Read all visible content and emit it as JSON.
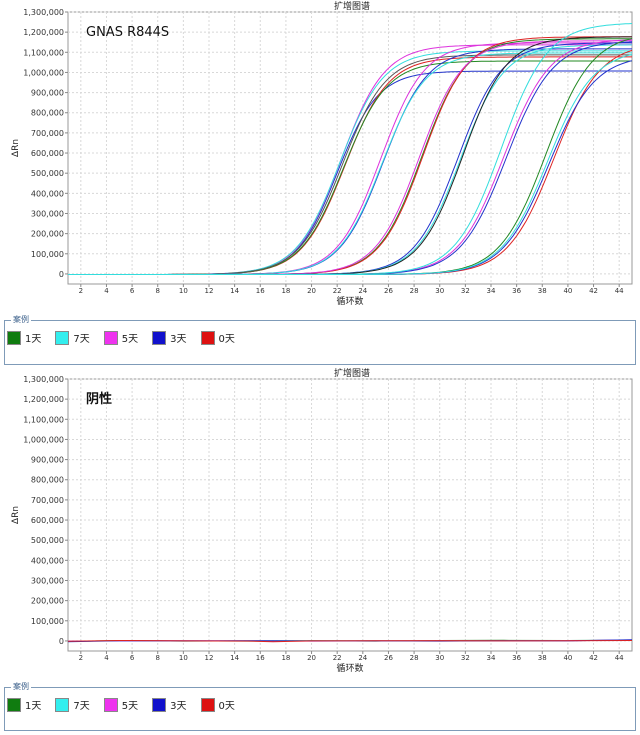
{
  "chart_data": [
    {
      "type": "line",
      "title": "扩增图谱",
      "annotation": "GNAS R844S",
      "xlabel": "循环数",
      "ylabel": "ΔRn",
      "xlim": [
        1,
        45
      ],
      "ylim": [
        -50000,
        1300000
      ],
      "x_ticks": [
        2,
        4,
        6,
        8,
        10,
        12,
        14,
        16,
        18,
        20,
        22,
        24,
        26,
        28,
        30,
        32,
        34,
        36,
        38,
        40,
        42,
        44
      ],
      "y_ticks": [
        0,
        100000,
        200000,
        300000,
        400000,
        500000,
        600000,
        700000,
        800000,
        900000,
        1000000,
        1100000,
        1200000,
        1300000
      ],
      "y_tick_labels": [
        "0",
        "100,000",
        "200,000",
        "300,000",
        "400,000",
        "500,000",
        "600,000",
        "700,000",
        "800,000",
        "900,000",
        "1,000,000",
        "1,100,000",
        "1,200,000",
        "1,300,000"
      ],
      "grid": true,
      "curve_model": "sigmoid: y = plateau / (1 + exp(-(x - midpoint) / slope))",
      "series": [
        {
          "name": "3天",
          "color": "#2233cc",
          "plateau": 1010000,
          "midpoint": 22.0,
          "slope": 1.6
        },
        {
          "name": "5天",
          "color": "#dd33dd",
          "plateau": 1140000,
          "midpoint": 22.3,
          "slope": 1.7
        },
        {
          "name": "7天",
          "color": "#33dddd",
          "plateau": 1110000,
          "midpoint": 22.2,
          "slope": 1.7
        },
        {
          "name": "0天",
          "color": "#dd2222",
          "plateau": 1080000,
          "midpoint": 22.6,
          "slope": 1.7
        },
        {
          "name": "1天",
          "color": "#228822",
          "plateau": 1060000,
          "midpoint": 22.5,
          "slope": 1.7
        },
        {
          "name": "3天",
          "color": "#555555",
          "plateau": 1090000,
          "midpoint": 22.4,
          "slope": 1.7
        },
        {
          "name": "5天",
          "color": "#dd33dd",
          "plateau": 1150000,
          "midpoint": 25.4,
          "slope": 1.7
        },
        {
          "name": "3天",
          "color": "#2233cc",
          "plateau": 1120000,
          "midpoint": 25.6,
          "slope": 1.7
        },
        {
          "name": "7天",
          "color": "#33dddd",
          "plateau": 1100000,
          "midpoint": 25.5,
          "slope": 1.7
        },
        {
          "name": "1天",
          "color": "#228822",
          "plateau": 1170000,
          "midpoint": 28.6,
          "slope": 1.7
        },
        {
          "name": "0天",
          "color": "#dd2222",
          "plateau": 1180000,
          "midpoint": 28.7,
          "slope": 1.7
        },
        {
          "name": "5天",
          "color": "#dd33dd",
          "plateau": 1160000,
          "midpoint": 28.4,
          "slope": 1.7
        },
        {
          "name": "3天",
          "color": "#2233cc",
          "plateau": 1150000,
          "midpoint": 31.4,
          "slope": 1.7
        },
        {
          "name": "7天",
          "color": "#33dddd",
          "plateau": 1140000,
          "midpoint": 31.6,
          "slope": 1.7
        },
        {
          "name": "1天",
          "color": "#222222",
          "plateau": 1180000,
          "midpoint": 31.8,
          "slope": 1.7
        },
        {
          "name": "5天",
          "color": "#dd33dd",
          "plateau": 1170000,
          "midpoint": 35.0,
          "slope": 1.8
        },
        {
          "name": "3天",
          "color": "#2233cc",
          "plateau": 1160000,
          "midpoint": 35.2,
          "slope": 1.8
        },
        {
          "name": "7天",
          "color": "#33dddd",
          "plateau": 1250000,
          "midpoint": 34.8,
          "slope": 1.8
        },
        {
          "name": "1天",
          "color": "#228822",
          "plateau": 1200000,
          "midpoint": 38.3,
          "slope": 1.8
        },
        {
          "name": "0天",
          "color": "#dd2222",
          "plateau": 1150000,
          "midpoint": 38.9,
          "slope": 1.8
        },
        {
          "name": "3天",
          "color": "#2233cc",
          "plateau": 1090000,
          "midpoint": 38.5,
          "slope": 1.8
        },
        {
          "name": "7天",
          "color": "#33dddd",
          "plateau": 1120000,
          "midpoint": 38.4,
          "slope": 1.8
        }
      ]
    },
    {
      "type": "line",
      "title": "扩增图谱",
      "annotation": "阴性",
      "xlabel": "循环数",
      "ylabel": "ΔRn",
      "xlim": [
        1,
        45
      ],
      "ylim": [
        -50000,
        1300000
      ],
      "x_ticks": [
        2,
        4,
        6,
        8,
        10,
        12,
        14,
        16,
        18,
        20,
        22,
        24,
        26,
        28,
        30,
        32,
        34,
        36,
        38,
        40,
        42,
        44
      ],
      "y_ticks": [
        0,
        100000,
        200000,
        300000,
        400000,
        500000,
        600000,
        700000,
        800000,
        900000,
        1000000,
        1100000,
        1200000,
        1300000
      ],
      "y_tick_labels": [
        "0",
        "100,000",
        "200,000",
        "300,000",
        "400,000",
        "500,000",
        "600,000",
        "700,000",
        "800,000",
        "900,000",
        "1,000,000",
        "1,100,000",
        "1,200,000",
        "1,300,000"
      ],
      "grid": true,
      "series": [
        {
          "name": "1天",
          "color": "#228822",
          "x": [
            1,
            5,
            10,
            15,
            20,
            25,
            30,
            35,
            40,
            45
          ],
          "y": [
            -3000,
            2000,
            -1000,
            0,
            1000,
            -1000,
            2000,
            3000,
            2000,
            4000
          ]
        },
        {
          "name": "7天",
          "color": "#33dddd",
          "x": [
            1,
            5,
            10,
            15,
            20,
            25,
            30,
            35,
            40,
            45
          ],
          "y": [
            -2000,
            1000,
            0,
            -1000,
            0,
            1000,
            0,
            1000,
            2000,
            3000
          ]
        },
        {
          "name": "5天",
          "color": "#dd33dd",
          "x": [
            1,
            5,
            10,
            15,
            20,
            25,
            30,
            35,
            40,
            45
          ],
          "y": [
            -1000,
            0,
            1000,
            0,
            -1000,
            0,
            1000,
            0,
            1000,
            5000
          ]
        },
        {
          "name": "3天",
          "color": "#2233cc",
          "x": [
            1,
            5,
            10,
            15,
            20,
            25,
            30,
            35,
            40,
            45
          ],
          "y": [
            -4000,
            1000,
            0,
            1000,
            0,
            0,
            -1000,
            1000,
            0,
            6000
          ]
        },
        {
          "name": "0天",
          "color": "#dd2222",
          "x": [
            1,
            5,
            10,
            15,
            17,
            20,
            25,
            30,
            35,
            40,
            45
          ],
          "y": [
            -2000,
            2000,
            0,
            -1000,
            -4000,
            0,
            1000,
            1000,
            0,
            1000,
            2000
          ]
        }
      ]
    }
  ],
  "legends": [
    {
      "title": "案例",
      "items": [
        {
          "label": "1天",
          "color": "#107c10"
        },
        {
          "label": "7天",
          "color": "#33eeee"
        },
        {
          "label": "5天",
          "color": "#ee33ee"
        },
        {
          "label": "3天",
          "color": "#1111cc"
        },
        {
          "label": "0天",
          "color": "#dd1111"
        }
      ]
    },
    {
      "title": "案例",
      "items": [
        {
          "label": "1天",
          "color": "#107c10"
        },
        {
          "label": "7天",
          "color": "#33eeee"
        },
        {
          "label": "5天",
          "color": "#ee33ee"
        },
        {
          "label": "3天",
          "color": "#1111cc"
        },
        {
          "label": "0天",
          "color": "#dd1111"
        }
      ]
    }
  ]
}
